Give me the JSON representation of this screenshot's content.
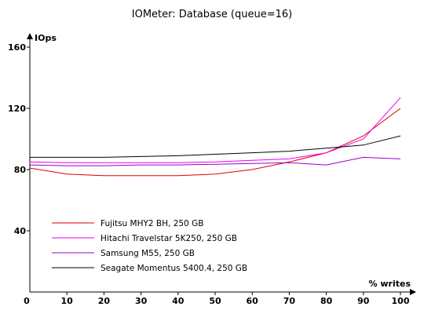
{
  "chart_data": {
    "type": "line",
    "title": "IOMeter: Database (queue=16)",
    "xlabel": "% writes",
    "ylabel": "IOps",
    "x": [
      0,
      10,
      20,
      30,
      40,
      50,
      60,
      70,
      80,
      90,
      100
    ],
    "xlim": [
      0,
      100
    ],
    "ylim": [
      0,
      160
    ],
    "xticks": [
      "0",
      "10",
      "20",
      "30",
      "40",
      "50",
      "60",
      "70",
      "80",
      "90",
      "100"
    ],
    "yticks": [
      "40",
      "80",
      "120",
      "160"
    ],
    "grid": false,
    "legend_position": "bottom-left",
    "series": [
      {
        "name": "Fujitsu MHY2 BH, 250 GB",
        "color": "#e00000",
        "values": [
          81,
          77,
          76,
          76,
          76,
          77,
          80,
          85,
          91,
          102,
          120
        ]
      },
      {
        "name": "Hitachi Travelstar 5K250, 250 GB",
        "color": "#ee00ee",
        "values": [
          85,
          84.5,
          84.5,
          84.5,
          84.5,
          85,
          86,
          87,
          91,
          100,
          127
        ]
      },
      {
        "name": "Samsung M55, 250 GB",
        "color": "#9900cc",
        "values": [
          83,
          82.5,
          82.5,
          83,
          83,
          83.5,
          84,
          84.5,
          83,
          88,
          87
        ]
      },
      {
        "name": "Seagate Momentus 5400.4, 250 GB",
        "color": "#000000",
        "values": [
          88,
          88,
          88,
          88.5,
          89,
          90,
          91,
          92,
          94,
          96,
          102
        ]
      }
    ]
  }
}
